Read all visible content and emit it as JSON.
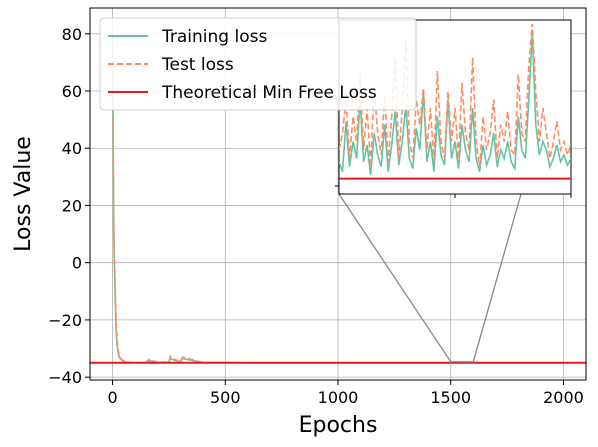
{
  "chart_data": {
    "type": "line",
    "xlabel": "Epochs",
    "ylabel": "Loss Value",
    "xlim": [
      -100,
      2100
    ],
    "ylim": [
      -41,
      89
    ],
    "xticks": [
      0,
      500,
      1000,
      1500,
      2000
    ],
    "yticks": [
      -40,
      -20,
      0,
      20,
      40,
      60,
      80
    ],
    "grid": true,
    "legend_position": "top-left",
    "series": [
      {
        "name": "Training loss",
        "color": "#66c2a5",
        "dash": "solid",
        "x": [
          0,
          2,
          5,
          8,
          12,
          16,
          20,
          25,
          30,
          40,
          50,
          60,
          80,
          100,
          150,
          160,
          200,
          250,
          255,
          300,
          310,
          400,
          600,
          800,
          1000,
          1200,
          1400,
          1500,
          1600,
          1800,
          2000,
          2030
        ],
        "y": [
          70,
          45,
          12,
          0,
          -14,
          -24,
          -29,
          -31.5,
          -33,
          -34,
          -34.5,
          -34.8,
          -34.9,
          -35,
          -34.9,
          -34.2,
          -34.9,
          -34.8,
          -33.5,
          -34.8,
          -33.5,
          -34.9,
          -35,
          -35,
          -35,
          -35,
          -35,
          -35,
          -35,
          -35,
          -35,
          -35
        ]
      },
      {
        "name": "Test loss",
        "color": "#fc8d62",
        "dash": "dashed",
        "x": [
          0,
          2,
          5,
          8,
          12,
          16,
          20,
          25,
          30,
          40,
          50,
          60,
          80,
          100,
          150,
          160,
          200,
          250,
          255,
          300,
          310,
          400,
          600,
          800,
          1000,
          1200,
          1400,
          1500,
          1600,
          1800,
          2000,
          2030
        ],
        "y": [
          80,
          55,
          20,
          5,
          -10,
          -21,
          -27,
          -30.5,
          -32.5,
          -33.8,
          -34.3,
          -34.7,
          -34.9,
          -35,
          -34.9,
          -33.8,
          -34.8,
          -34.7,
          -32.8,
          -34.7,
          -33,
          -34.9,
          -35,
          -35,
          -35,
          -35,
          -35,
          -35,
          -35,
          -35,
          -35,
          -35
        ]
      },
      {
        "name": "Theoretical Min Free Loss",
        "color": "#e31a1c",
        "dash": "solid",
        "x": [
          -100,
          2100
        ],
        "y": [
          -35,
          -35
        ]
      }
    ],
    "inset": {
      "xlim": [
        1500,
        1600
      ],
      "train": [
        0.18,
        0.12,
        0.42,
        0.15,
        0.3,
        0.2,
        0.55,
        0.18,
        0.28,
        0.1,
        0.35,
        0.22,
        0.15,
        0.4,
        0.12,
        0.28,
        0.48,
        0.16,
        0.3,
        0.52,
        0.2,
        0.14,
        0.38,
        0.25,
        0.6,
        0.18,
        0.3,
        0.12,
        0.45,
        0.22,
        0.16,
        0.55,
        0.2,
        0.3,
        0.14,
        0.4,
        0.25,
        0.18,
        0.5,
        0.2,
        0.12,
        0.28,
        0.16,
        0.22,
        0.35,
        0.15,
        0.25,
        0.2,
        0.3,
        0.18,
        0.14,
        0.45,
        0.25,
        0.2,
        0.55,
        0.95,
        0.4,
        0.22,
        0.3,
        0.25,
        0.15,
        0.2,
        0.28,
        0.18,
        0.22,
        0.16,
        0.2
      ],
      "test": [
        0.25,
        0.35,
        0.55,
        0.2,
        0.45,
        0.3,
        0.7,
        0.25,
        0.5,
        0.15,
        0.62,
        0.35,
        0.22,
        0.58,
        0.18,
        0.45,
        0.8,
        0.2,
        0.5,
        0.9,
        0.3,
        0.2,
        0.55,
        0.4,
        0.62,
        0.25,
        0.5,
        0.18,
        0.72,
        0.3,
        0.2,
        0.6,
        0.3,
        0.5,
        0.2,
        0.65,
        0.35,
        0.25,
        0.8,
        0.3,
        0.15,
        0.45,
        0.25,
        0.35,
        0.55,
        0.2,
        0.4,
        0.3,
        0.48,
        0.25,
        0.22,
        0.7,
        0.35,
        0.3,
        0.75,
        1.0,
        0.6,
        0.3,
        0.5,
        0.35,
        0.2,
        0.3,
        0.42,
        0.25,
        0.3,
        0.22,
        0.28
      ],
      "min_level": 0.08
    }
  }
}
